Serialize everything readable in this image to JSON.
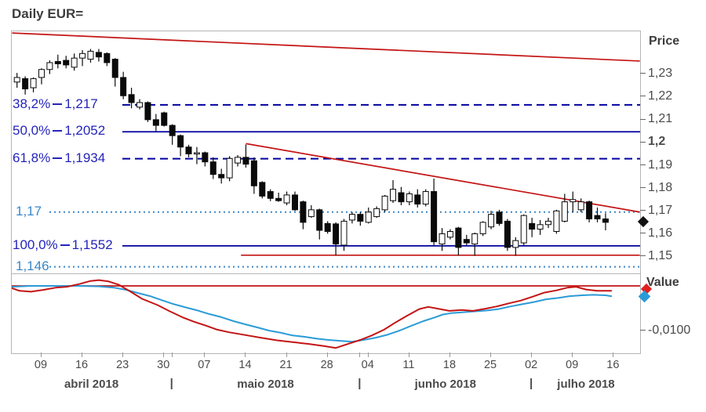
{
  "title": "Daily EUR=",
  "price_axis": {
    "label": "Price",
    "ticks": [
      {
        "label": "1,23",
        "value": 1.23,
        "bold": false
      },
      {
        "label": "1,22",
        "value": 1.22,
        "bold": false
      },
      {
        "label": "1,21",
        "value": 1.21,
        "bold": false
      },
      {
        "label": "1,2",
        "value": 1.2,
        "bold": true
      },
      {
        "label": "1,19",
        "value": 1.19,
        "bold": false
      },
      {
        "label": "1,18",
        "value": 1.18,
        "bold": false
      },
      {
        "label": "1,17",
        "value": 1.17,
        "bold": false
      },
      {
        "label": "1,16",
        "value": 1.16,
        "bold": false
      },
      {
        "label": "1,15",
        "value": 1.15,
        "bold": false
      }
    ],
    "last_price_marker": 1.1655
  },
  "value_axis": {
    "label": "Value",
    "tick_label": "-0,0100",
    "tick_value": -0.01,
    "red_marker": -0.0009,
    "blue_marker": -0.0025
  },
  "fib_levels": [
    {
      "label": "38,2%",
      "value_label": "1,217",
      "price": 1.217,
      "style": "dashed"
    },
    {
      "label": "50,0%",
      "value_label": "1,2052",
      "price": 1.2052,
      "style": "solid"
    },
    {
      "label": "61,8%",
      "value_label": "1,1934",
      "price": 1.1934,
      "style": "dashed"
    },
    {
      "label": "100,0%",
      "value_label": "1,1552",
      "price": 1.1552,
      "style": "solid"
    }
  ],
  "dotted_levels": [
    {
      "label": "1,17",
      "price": 1.17
    },
    {
      "label": "1,146",
      "price": 1.146
    }
  ],
  "annotations": {
    "trendlines": [
      {
        "name": "april-resistance",
        "x1_idx": -0.6,
        "price1": 1.2485,
        "x2_idx": 76.2,
        "price2": 1.2362
      },
      {
        "name": "may-june-resistance",
        "x1_idx": 28.0,
        "price1": 1.2,
        "x2_idx": 76.2,
        "price2": 1.17
      }
    ],
    "support_line": {
      "price": 1.1511,
      "from_idx": 27.4,
      "to_idx": 76.2
    }
  },
  "x_axis": {
    "weeks": [
      {
        "label": "09",
        "idx": 3
      },
      {
        "label": "16",
        "idx": 8
      },
      {
        "label": "23",
        "idx": 13
      },
      {
        "label": "30",
        "idx": 18
      },
      {
        "label": "07",
        "idx": 23
      },
      {
        "label": "14",
        "idx": 28
      },
      {
        "label": "21",
        "idx": 33
      },
      {
        "label": "28",
        "idx": 38
      },
      {
        "label": "04",
        "idx": 43
      },
      {
        "label": "11",
        "idx": 48
      },
      {
        "label": "18",
        "idx": 53
      },
      {
        "label": "25",
        "idx": 58
      },
      {
        "label": "02",
        "idx": 63
      },
      {
        "label": "09",
        "idx": 68
      },
      {
        "label": "16",
        "idx": 73
      }
    ],
    "months": [
      {
        "label": "abril 2018",
        "center_idx": 9.2
      },
      {
        "label": "maio 2018",
        "center_idx": 30.5
      },
      {
        "label": "junho 2018",
        "center_idx": 52.5
      },
      {
        "label": "julho 2018",
        "center_idx": 69.7
      }
    ],
    "separator_char": "|",
    "separator_idx": [
      19,
      42,
      63
    ]
  },
  "colors": {
    "red": "#c41414",
    "navy": "#0000a0",
    "fib_text": "#2424bc",
    "light_blue": "#3a87c8",
    "curve_blue": "#2b9bd7",
    "candle_black": "#0a0a0a",
    "axis_text": "#4b4b4b",
    "border": "#b5b5b5"
  },
  "chart_data": {
    "type": "candlestick+oscillator",
    "title": "Daily EUR=",
    "price_range": [
      1.1431,
      1.2492
    ],
    "value_range": [
      -0.0175,
      0.0026
    ],
    "candles": [
      {
        "d": "04/04",
        "o": 1.227,
        "h": 1.231,
        "l": 1.2245,
        "c": 1.229
      },
      {
        "d": "05/04",
        "o": 1.2285,
        "h": 1.2295,
        "l": 1.2215,
        "c": 1.224
      },
      {
        "d": "06/04",
        "o": 1.2245,
        "h": 1.229,
        "l": 1.2225,
        "c": 1.2285
      },
      {
        "d": "09/04",
        "o": 1.229,
        "h": 1.233,
        "l": 1.226,
        "c": 1.2325
      },
      {
        "d": "10/04",
        "o": 1.2325,
        "h": 1.2365,
        "l": 1.2305,
        "c": 1.2355
      },
      {
        "d": "11/04",
        "o": 1.236,
        "h": 1.239,
        "l": 1.233,
        "c": 1.235
      },
      {
        "d": "12/04",
        "o": 1.2365,
        "h": 1.2385,
        "l": 1.233,
        "c": 1.2345
      },
      {
        "d": "13/04",
        "o": 1.2335,
        "h": 1.2395,
        "l": 1.232,
        "c": 1.2375
      },
      {
        "d": "16/04",
        "o": 1.2375,
        "h": 1.241,
        "l": 1.234,
        "c": 1.2395
      },
      {
        "d": "17/04",
        "o": 1.237,
        "h": 1.2415,
        "l": 1.2355,
        "c": 1.2405
      },
      {
        "d": "18/04",
        "o": 1.24,
        "h": 1.2415,
        "l": 1.236,
        "c": 1.238
      },
      {
        "d": "19/04",
        "o": 1.2395,
        "h": 1.24,
        "l": 1.234,
        "c": 1.2355
      },
      {
        "d": "20/04",
        "o": 1.237,
        "h": 1.2375,
        "l": 1.225,
        "c": 1.229
      },
      {
        "d": "23/04",
        "o": 1.229,
        "h": 1.2315,
        "l": 1.2195,
        "c": 1.221
      },
      {
        "d": "24/04",
        "o": 1.2215,
        "h": 1.2245,
        "l": 1.2155,
        "c": 1.218
      },
      {
        "d": "25/04",
        "o": 1.216,
        "h": 1.2195,
        "l": 1.215,
        "c": 1.218
      },
      {
        "d": "26/04",
        "o": 1.218,
        "h": 1.2185,
        "l": 1.2095,
        "c": 1.2105
      },
      {
        "d": "27/04",
        "o": 1.2105,
        "h": 1.213,
        "l": 1.2055,
        "c": 1.208
      },
      {
        "d": "30/04",
        "o": 1.2135,
        "h": 1.214,
        "l": 1.2075,
        "c": 1.208
      },
      {
        "d": "01/05",
        "o": 1.208,
        "h": 1.2085,
        "l": 1.1995,
        "c": 1.2035
      },
      {
        "d": "02/05",
        "o": 1.2035,
        "h": 1.204,
        "l": 1.1945,
        "c": 1.1985
      },
      {
        "d": "03/05",
        "o": 1.1985,
        "h": 1.1995,
        "l": 1.194,
        "c": 1.1955
      },
      {
        "d": "04/05",
        "o": 1.1955,
        "h": 1.1985,
        "l": 1.191,
        "c": 1.196
      },
      {
        "d": "07/05",
        "o": 1.196,
        "h": 1.1965,
        "l": 1.19,
        "c": 1.192
      },
      {
        "d": "08/05",
        "o": 1.192,
        "h": 1.194,
        "l": 1.1845,
        "c": 1.1865
      },
      {
        "d": "09/05",
        "o": 1.1865,
        "h": 1.189,
        "l": 1.1825,
        "c": 1.185
      },
      {
        "d": "10/05",
        "o": 1.185,
        "h": 1.1945,
        "l": 1.1835,
        "c": 1.1935
      },
      {
        "d": "11/05",
        "o": 1.1915,
        "h": 1.195,
        "l": 1.19,
        "c": 1.194
      },
      {
        "d": "14/05",
        "o": 1.194,
        "h": 1.1996,
        "l": 1.1895,
        "c": 1.191
      },
      {
        "d": "15/05",
        "o": 1.1925,
        "h": 1.194,
        "l": 1.178,
        "c": 1.1815
      },
      {
        "d": "16/05",
        "o": 1.183,
        "h": 1.1835,
        "l": 1.176,
        "c": 1.177
      },
      {
        "d": "17/05",
        "o": 1.179,
        "h": 1.18,
        "l": 1.1748,
        "c": 1.176
      },
      {
        "d": "18/05",
        "o": 1.176,
        "h": 1.1785,
        "l": 1.1745,
        "c": 1.175
      },
      {
        "d": "21/05",
        "o": 1.174,
        "h": 1.179,
        "l": 1.173,
        "c": 1.1775
      },
      {
        "d": "22/05",
        "o": 1.1775,
        "h": 1.179,
        "l": 1.1705,
        "c": 1.171
      },
      {
        "d": "23/05",
        "o": 1.1745,
        "h": 1.175,
        "l": 1.1625,
        "c": 1.1655
      },
      {
        "d": "24/05",
        "o": 1.168,
        "h": 1.173,
        "l": 1.1675,
        "c": 1.171
      },
      {
        "d": "25/05",
        "o": 1.171,
        "h": 1.1715,
        "l": 1.158,
        "c": 1.162
      },
      {
        "d": "28/05",
        "o": 1.165,
        "h": 1.166,
        "l": 1.1605,
        "c": 1.1615
      },
      {
        "d": "29/05",
        "o": 1.1648,
        "h": 1.1655,
        "l": 1.151,
        "c": 1.156
      },
      {
        "d": "30/05",
        "o": 1.1555,
        "h": 1.167,
        "l": 1.153,
        "c": 1.166
      },
      {
        "d": "31/05",
        "o": 1.1665,
        "h": 1.17,
        "l": 1.165,
        "c": 1.169
      },
      {
        "d": "01/06",
        "o": 1.169,
        "h": 1.17,
        "l": 1.164,
        "c": 1.166
      },
      {
        "d": "04/06",
        "o": 1.1655,
        "h": 1.172,
        "l": 1.165,
        "c": 1.17
      },
      {
        "d": "05/06",
        "o": 1.168,
        "h": 1.1725,
        "l": 1.1675,
        "c": 1.1715
      },
      {
        "d": "06/06",
        "o": 1.171,
        "h": 1.1775,
        "l": 1.17,
        "c": 1.177
      },
      {
        "d": "07/06",
        "o": 1.175,
        "h": 1.184,
        "l": 1.174,
        "c": 1.18
      },
      {
        "d": "08/06",
        "o": 1.1785,
        "h": 1.181,
        "l": 1.173,
        "c": 1.1745
      },
      {
        "d": "11/06",
        "o": 1.1745,
        "h": 1.179,
        "l": 1.173,
        "c": 1.178
      },
      {
        "d": "12/06",
        "o": 1.1775,
        "h": 1.18,
        "l": 1.172,
        "c": 1.1735
      },
      {
        "d": "13/06",
        "o": 1.1735,
        "h": 1.18,
        "l": 1.1725,
        "c": 1.179
      },
      {
        "d": "14/06",
        "o": 1.179,
        "h": 1.1847,
        "l": 1.1555,
        "c": 1.157
      },
      {
        "d": "15/06",
        "o": 1.156,
        "h": 1.163,
        "l": 1.153,
        "c": 1.1605
      },
      {
        "d": "18/06",
        "o": 1.159,
        "h": 1.1625,
        "l": 1.158,
        "c": 1.1615
      },
      {
        "d": "19/06",
        "o": 1.163,
        "h": 1.1635,
        "l": 1.151,
        "c": 1.1545
      },
      {
        "d": "20/06",
        "o": 1.158,
        "h": 1.16,
        "l": 1.1555,
        "c": 1.1565
      },
      {
        "d": "21/06",
        "o": 1.156,
        "h": 1.161,
        "l": 1.1508,
        "c": 1.1605
      },
      {
        "d": "22/06",
        "o": 1.1605,
        "h": 1.166,
        "l": 1.1595,
        "c": 1.1655
      },
      {
        "d": "25/06",
        "o": 1.1635,
        "h": 1.1705,
        "l": 1.1625,
        "c": 1.169
      },
      {
        "d": "26/06",
        "o": 1.17,
        "h": 1.171,
        "l": 1.164,
        "c": 1.165
      },
      {
        "d": "27/06",
        "o": 1.166,
        "h": 1.167,
        "l": 1.153,
        "c": 1.1545
      },
      {
        "d": "28/06",
        "o": 1.1545,
        "h": 1.159,
        "l": 1.1508,
        "c": 1.1575
      },
      {
        "d": "29/06",
        "o": 1.1565,
        "h": 1.169,
        "l": 1.1555,
        "c": 1.1685
      },
      {
        "d": "02/07",
        "o": 1.165,
        "h": 1.1675,
        "l": 1.159,
        "c": 1.1625
      },
      {
        "d": "03/07",
        "o": 1.1625,
        "h": 1.1665,
        "l": 1.16,
        "c": 1.1645
      },
      {
        "d": "04/07",
        "o": 1.1645,
        "h": 1.1675,
        "l": 1.163,
        "c": 1.166
      },
      {
        "d": "05/07",
        "o": 1.1615,
        "h": 1.171,
        "l": 1.1605,
        "c": 1.1705
      },
      {
        "d": "06/07",
        "o": 1.166,
        "h": 1.178,
        "l": 1.1655,
        "c": 1.1745
      },
      {
        "d": "09/07",
        "o": 1.1745,
        "h": 1.179,
        "l": 1.17,
        "c": 1.1755
      },
      {
        "d": "10/07",
        "o": 1.171,
        "h": 1.176,
        "l": 1.17,
        "c": 1.1745
      },
      {
        "d": "11/07",
        "o": 1.1745,
        "h": 1.175,
        "l": 1.1655,
        "c": 1.167
      },
      {
        "d": "12/07",
        "o": 1.1685,
        "h": 1.172,
        "l": 1.1655,
        "c": 1.167
      },
      {
        "d": "13/07",
        "o": 1.167,
        "h": 1.1695,
        "l": 1.162,
        "c": 1.1655
      }
    ],
    "oscillator": {
      "red_series": [
        [
          -0.6,
          -0.0005
        ],
        [
          0.3,
          -0.0011
        ],
        [
          1.7,
          -0.0013
        ],
        [
          3.2,
          -0.0009
        ],
        [
          4.7,
          -0.0004
        ],
        [
          6.1,
          -0.0002
        ],
        [
          7.6,
          0.0004
        ],
        [
          9.0,
          0.0011
        ],
        [
          10.0,
          0.0013
        ],
        [
          11.2,
          0.001
        ],
        [
          12.4,
          0.0003
        ],
        [
          13.9,
          -0.0013
        ],
        [
          15.3,
          -0.0029
        ],
        [
          17.2,
          -0.0043
        ],
        [
          18.7,
          -0.0057
        ],
        [
          20.2,
          -0.007
        ],
        [
          21.6,
          -0.008
        ],
        [
          23.1,
          -0.0089
        ],
        [
          24.5,
          -0.0098
        ],
        [
          26.0,
          -0.0104
        ],
        [
          27.9,
          -0.011
        ],
        [
          29.8,
          -0.0116
        ],
        [
          31.8,
          -0.0122
        ],
        [
          33.7,
          -0.0126
        ],
        [
          35.7,
          -0.013
        ],
        [
          37.6,
          -0.0135
        ],
        [
          39.0,
          -0.0139
        ],
        [
          40.5,
          -0.013
        ],
        [
          42.0,
          -0.0121
        ],
        [
          43.4,
          -0.0111
        ],
        [
          44.9,
          -0.0098
        ],
        [
          46.3,
          -0.0082
        ],
        [
          47.8,
          -0.0066
        ],
        [
          49.2,
          -0.0052
        ],
        [
          50.3,
          -0.0047
        ],
        [
          51.5,
          -0.0051
        ],
        [
          52.9,
          -0.0056
        ],
        [
          54.4,
          -0.0054
        ],
        [
          55.8,
          -0.0056
        ],
        [
          57.3,
          -0.0051
        ],
        [
          58.7,
          -0.0046
        ],
        [
          60.2,
          -0.0039
        ],
        [
          61.6,
          -0.0033
        ],
        [
          63.1,
          -0.0024
        ],
        [
          64.5,
          -0.0015
        ],
        [
          66.0,
          -0.001
        ],
        [
          67.3,
          -0.0004
        ],
        [
          68.4,
          -0.0002
        ],
        [
          69.6,
          -0.0008
        ],
        [
          71.0,
          -0.0011
        ],
        [
          72.7,
          -0.0011
        ]
      ],
      "blue_series": [
        [
          -0.6,
          -0.0002
        ],
        [
          1.7,
          0.0
        ],
        [
          4.7,
          0.0
        ],
        [
          7.6,
          0.0
        ],
        [
          10.0,
          -0.0001
        ],
        [
          11.9,
          -0.0004
        ],
        [
          13.4,
          -0.0009
        ],
        [
          14.8,
          -0.0016
        ],
        [
          16.3,
          -0.0023
        ],
        [
          17.7,
          -0.0032
        ],
        [
          19.2,
          -0.0041
        ],
        [
          20.6,
          -0.0048
        ],
        [
          22.1,
          -0.0055
        ],
        [
          23.5,
          -0.0063
        ],
        [
          25.0,
          -0.007
        ],
        [
          26.5,
          -0.0079
        ],
        [
          27.9,
          -0.0086
        ],
        [
          29.4,
          -0.0093
        ],
        [
          30.8,
          -0.01
        ],
        [
          32.3,
          -0.0105
        ],
        [
          33.7,
          -0.0111
        ],
        [
          35.2,
          -0.0114
        ],
        [
          36.6,
          -0.0118
        ],
        [
          38.1,
          -0.0121
        ],
        [
          39.5,
          -0.0123
        ],
        [
          41.0,
          -0.0125
        ],
        [
          42.4,
          -0.0121
        ],
        [
          43.9,
          -0.0116
        ],
        [
          45.4,
          -0.0109
        ],
        [
          46.8,
          -0.01
        ],
        [
          48.3,
          -0.0089
        ],
        [
          49.7,
          -0.0079
        ],
        [
          51.2,
          -0.007
        ],
        [
          52.1,
          -0.0064
        ],
        [
          53.1,
          -0.0061
        ],
        [
          54.6,
          -0.0059
        ],
        [
          56.0,
          -0.0057
        ],
        [
          57.5,
          -0.0055
        ],
        [
          58.9,
          -0.0052
        ],
        [
          60.4,
          -0.0046
        ],
        [
          61.8,
          -0.0041
        ],
        [
          63.3,
          -0.0036
        ],
        [
          64.7,
          -0.003
        ],
        [
          66.2,
          -0.0027
        ],
        [
          67.6,
          -0.0023
        ],
        [
          69.1,
          -0.0021
        ],
        [
          70.5,
          -0.002
        ],
        [
          72.0,
          -0.0021
        ],
        [
          72.7,
          -0.0023
        ]
      ],
      "zero_line_value": 0.0
    }
  }
}
